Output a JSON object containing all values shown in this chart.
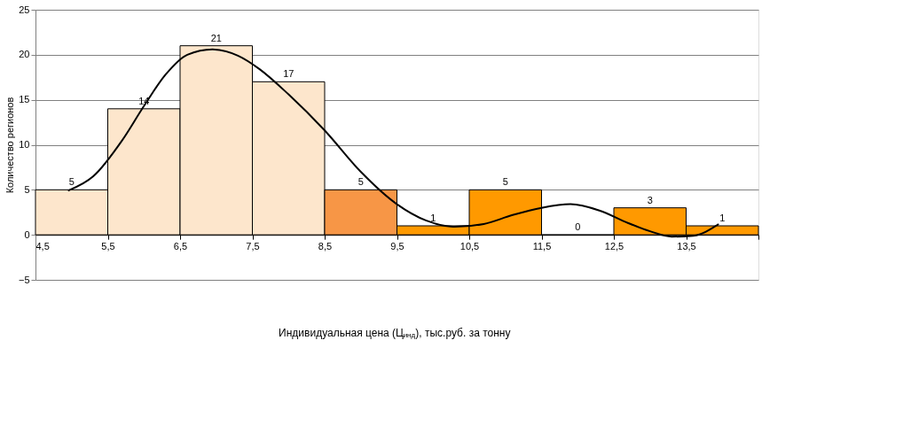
{
  "chart_data": {
    "type": "histogram",
    "xlabel": "Индивидуальная цена (Ц$_{инд}$), тыс.руб. за тонну",
    "ylabel": "Количество регионов",
    "bins": [
      4.5,
      5.5,
      6.5,
      7.5,
      8.5,
      9.5,
      10.5,
      11.5,
      12.5,
      13.5,
      14.5
    ],
    "values": [
      5,
      14,
      21,
      17,
      5,
      1,
      5,
      0,
      3,
      1
    ],
    "colors": [
      "#fde6cc",
      "#fde6cc",
      "#fde6cc",
      "#fde6cc",
      "#f79646",
      "#ff9900",
      "#ff9900",
      "#ff9900",
      "#ff9900",
      "#ff9900"
    ],
    "value_labels": [
      "5",
      "14",
      "21",
      "17",
      "5",
      "1",
      "5",
      "0",
      "3",
      "1"
    ],
    "series": [
      {
        "type": "line",
        "color": "#000000",
        "x": [
          4.95,
          5.3,
          5.7,
          6.0,
          6.3,
          6.6,
          6.95,
          7.3,
          7.6,
          8.0,
          8.5,
          9.0,
          9.5,
          9.9,
          10.3,
          10.7,
          11.1,
          11.5,
          11.9,
          12.3,
          12.7,
          13.0,
          13.3,
          13.6,
          13.95
        ],
        "values": [
          4.9,
          6.5,
          10.5,
          14.3,
          17.8,
          20.0,
          20.6,
          19.9,
          18.4,
          15.6,
          11.6,
          7.0,
          3.4,
          1.6,
          0.9,
          1.2,
          2.2,
          3.0,
          3.4,
          2.7,
          1.3,
          0.4,
          -0.2,
          -0.1,
          1.2
        ]
      }
    ],
    "xlim": [
      4.5,
      14.5
    ],
    "xticks": [
      {
        "value": 4.5,
        "label": "4,5"
      },
      {
        "value": 5.5,
        "label": "5,5"
      },
      {
        "value": 6.5,
        "label": "6,5"
      },
      {
        "value": 7.5,
        "label": "7,5"
      },
      {
        "value": 8.5,
        "label": "8,5"
      },
      {
        "value": 9.5,
        "label": "9,5"
      },
      {
        "value": 10.5,
        "label": "10,5"
      },
      {
        "value": 11.5,
        "label": "11,5"
      },
      {
        "value": 12.5,
        "label": "12,5"
      },
      {
        "value": 13.5,
        "label": "13,5"
      },
      {
        "value": 14.5,
        "label": null
      }
    ],
    "ylim": [
      -5,
      25
    ],
    "yticks": [
      -5,
      0,
      5,
      10,
      15,
      20,
      25
    ],
    "grid": "y"
  }
}
